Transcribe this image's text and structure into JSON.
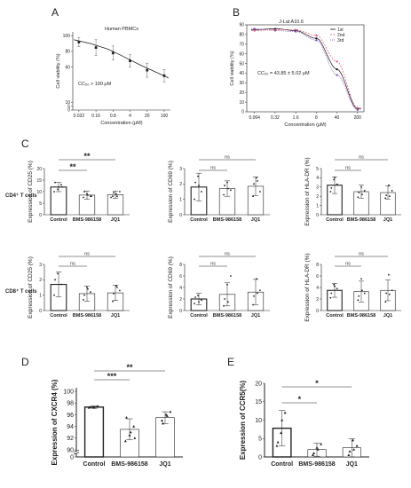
{
  "colors": {
    "ink": "#222222",
    "pink": "#e0567a",
    "purple": "#7a4ab5",
    "black": "#111111",
    "grey": "#999999"
  },
  "panels": {
    "A": {
      "letter": "A"
    },
    "B": {
      "letter": "B"
    },
    "C": {
      "letter": "C"
    },
    "D": {
      "letter": "D"
    },
    "E": {
      "letter": "E"
    }
  },
  "row_labels": {
    "cd4": "CD4⁺ T cells",
    "cd8": "CD8⁺ T cells"
  },
  "chart_data": [
    {
      "id": "A",
      "type": "scatter",
      "title": "Human PBMCs",
      "xlabel": "Concentration (μM)",
      "ylabel": "Cell viability (%)",
      "x_scale": "log",
      "x_tick_labels": [
        "0.032",
        "0.16",
        "0.8",
        "4",
        "20",
        "100"
      ],
      "y_tick_labels": [
        "0",
        "5",
        "10",
        "60",
        "80",
        "100"
      ],
      "ylim": [
        0,
        100
      ],
      "annotation": "CC₅₀ > 100 μM",
      "series": [
        {
          "x": [
            0.032,
            0.16,
            0.8,
            4,
            20,
            100
          ],
          "y": [
            92,
            85,
            78,
            68,
            56,
            49
          ],
          "err": [
            6,
            10,
            9,
            8,
            9,
            8
          ]
        }
      ],
      "fit": {
        "x": [
          0.02,
          0.1,
          0.5,
          2,
          10,
          50,
          150
        ],
        "y": [
          95,
          90,
          83,
          74,
          63,
          53,
          46
        ]
      }
    },
    {
      "id": "B",
      "type": "line",
      "title": "J-Lat A10.6",
      "xlabel": "Concentration (μM)",
      "ylabel": "Cell viability (%)",
      "x_scale": "log",
      "x_tick_labels": [
        "0.064",
        "0.32",
        "1.6",
        "8",
        "40",
        "200"
      ],
      "y_tick_labels": [
        "0",
        "10",
        "20",
        "30",
        "40",
        "50",
        "60",
        "70",
        "80",
        "90"
      ],
      "ylim": [
        0,
        90
      ],
      "annotation": "CC₅₀ = 43.85 ± 5.02 μM",
      "legend": [
        "1st",
        "2nd",
        "3rd"
      ],
      "series": [
        {
          "name": "1st",
          "color": "#111111",
          "x": [
            0.064,
            0.32,
            1.6,
            8,
            40,
            200
          ],
          "y": [
            85,
            86,
            84,
            76,
            44,
            3
          ]
        },
        {
          "name": "2nd",
          "color": "#e0567a",
          "x": [
            0.064,
            0.32,
            1.6,
            8,
            40,
            200
          ],
          "y": [
            84,
            85,
            85,
            79,
            52,
            4
          ]
        },
        {
          "name": "3rd",
          "color": "#7a4ab5",
          "x": [
            0.064,
            0.32,
            1.6,
            8,
            40,
            200
          ],
          "y": [
            86,
            84,
            83,
            74,
            38,
            2
          ]
        }
      ]
    },
    {
      "id": "C1",
      "type": "bar",
      "ylabel": "Expression of CD25 (%)",
      "categories": [
        "Control",
        "BMS-986158",
        "JQ1"
      ],
      "values": [
        12,
        8.5,
        8.7
      ],
      "err": [
        2,
        1.8,
        1.6
      ],
      "ylim": [
        0,
        20
      ],
      "y_tick_labels": [
        "0",
        "5",
        "10",
        "15",
        "20"
      ],
      "points": [
        [
          10,
          11,
          13,
          14,
          12,
          12
        ],
        [
          7.5,
          9,
          8,
          10,
          8.5,
          8
        ],
        [
          8,
          9,
          10,
          9.5,
          8,
          7.5
        ]
      ],
      "sig": [
        "**",
        "**"
      ]
    },
    {
      "id": "C2",
      "type": "bar",
      "ylabel": "Expression of CD69 (%)",
      "categories": [
        "Control",
        "BMS-986158",
        "JQ1"
      ],
      "values": [
        1.8,
        1.7,
        1.85
      ],
      "err": [
        0.9,
        0.5,
        0.6
      ],
      "ylim": [
        0,
        3
      ],
      "y_tick_labels": [
        "0",
        "1",
        "2",
        "3"
      ],
      "points": [
        [
          1.0,
          2.5,
          1.5,
          2.1,
          1.9
        ],
        [
          1.3,
          2.1,
          1.6,
          1.9,
          1.7
        ],
        [
          1.2,
          2.4,
          1.5,
          2.0,
          2.2
        ]
      ],
      "sig": [
        "ns",
        "ns"
      ]
    },
    {
      "id": "C3",
      "type": "bar",
      "ylabel": "Expression of HLA-DR (%)",
      "categories": [
        "Control",
        "BMS-986158",
        "JQ1"
      ],
      "values": [
        3.2,
        2.5,
        2.4
      ],
      "err": [
        0.9,
        0.7,
        0.7
      ],
      "ylim": [
        0,
        5
      ],
      "y_tick_labels": [
        "0",
        "1",
        "2",
        "3",
        "4",
        "5"
      ],
      "points": [
        [
          2.5,
          3.8,
          3.3,
          2.9,
          4.0
        ],
        [
          1.9,
          3.0,
          2.6,
          2.4,
          2.2
        ],
        [
          1.8,
          3.2,
          2.6,
          2.1,
          2.0
        ]
      ],
      "sig": [
        "ns",
        "ns"
      ]
    },
    {
      "id": "C4",
      "type": "bar",
      "ylabel": "Expression of CD25 (%)",
      "categories": [
        "Control",
        "BMS-986158",
        "JQ1"
      ],
      "values": [
        1.7,
        1.1,
        1.15
      ],
      "err": [
        0.8,
        0.5,
        0.5
      ],
      "ylim": [
        0,
        3
      ],
      "y_tick_labels": [
        "0",
        "1",
        "2",
        "3"
      ],
      "points": [
        [
          1.0,
          2.4,
          1.7,
          2.0
        ],
        [
          0.7,
          1.5,
          1.2,
          1.0,
          1.4
        ],
        [
          0.6,
          1.6,
          1.3,
          1.1,
          1.5
        ]
      ],
      "sig": [
        "ns",
        "ns"
      ]
    },
    {
      "id": "C5",
      "type": "bar",
      "ylabel": "Expression of CD69 (%)",
      "categories": [
        "Control",
        "BMS-986158",
        "JQ1"
      ],
      "values": [
        2.0,
        2.8,
        3.2
      ],
      "err": [
        1.0,
        2.0,
        2.2
      ],
      "ylim": [
        0,
        8
      ],
      "y_tick_labels": [
        "0",
        "2",
        "4",
        "6",
        "8"
      ],
      "points": [
        [
          1.2,
          2.6,
          1.8,
          2.3,
          1.5
        ],
        [
          0.8,
          4.5,
          6.0,
          2.0,
          1.5
        ],
        [
          1.0,
          5.5,
          3.5,
          2.5,
          3.0
        ]
      ],
      "sig": [
        "ns",
        "ns"
      ]
    },
    {
      "id": "C6",
      "type": "bar",
      "ylabel": "Expression of HLA-DR (%)",
      "categories": [
        "Control",
        "BMS-986158",
        "JQ1"
      ],
      "values": [
        3.5,
        3.3,
        3.5
      ],
      "err": [
        1.2,
        1.8,
        1.8
      ],
      "ylim": [
        0,
        8
      ],
      "y_tick_labels": [
        "0",
        "2",
        "4",
        "6",
        "8"
      ],
      "points": [
        [
          2.2,
          4.5,
          3.8,
          3.0,
          4.2
        ],
        [
          1.8,
          5.5,
          3.0,
          2.5,
          3.5
        ],
        [
          1.5,
          6.2,
          3.5,
          3.0,
          2.8
        ]
      ],
      "sig": [
        "ns",
        "ns"
      ]
    },
    {
      "id": "D",
      "type": "bar",
      "ylabel": "Expression of CXCR4 (%)",
      "categories": [
        "Control",
        "BMS-986158",
        "JQ1"
      ],
      "values": [
        97.3,
        93.5,
        95.5
      ],
      "err": [
        0.2,
        1.8,
        1.0
      ],
      "y_tick_labels": [
        "0",
        "90",
        "92",
        "94",
        "96",
        "98",
        "100"
      ],
      "axis_break": true,
      "points": [
        [
          97.2,
          97.3,
          97.4,
          97.3,
          97.2,
          97.4
        ],
        [
          91.5,
          92.5,
          94,
          95.5,
          93,
          92
        ],
        [
          95,
          96,
          96.5,
          94.5,
          95.8
        ]
      ],
      "sig": [
        "***",
        "**"
      ]
    },
    {
      "id": "E",
      "type": "bar",
      "ylabel": "Expression of CCR5(%)",
      "categories": [
        "Control",
        "BMS-986158",
        "JQ1"
      ],
      "values": [
        7.8,
        2.0,
        2.5
      ],
      "err": [
        4.8,
        1.8,
        2.5
      ],
      "ylim": [
        0,
        20
      ],
      "y_tick_labels": [
        "0",
        "5",
        "10",
        "15",
        "20"
      ],
      "points": [
        [
          3.0,
          6.5,
          12.0,
          4.0,
          10.0
        ],
        [
          0.5,
          2.5,
          3.5,
          1.0,
          2.0
        ],
        [
          0.5,
          4.5,
          3.0,
          1.5,
          2.0
        ]
      ],
      "sig": [
        "*",
        "*"
      ]
    }
  ]
}
